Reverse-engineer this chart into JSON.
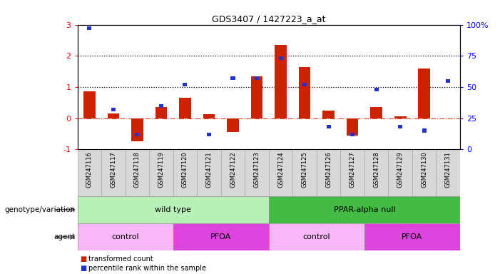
{
  "title": "GDS3407 / 1427223_a_at",
  "samples": [
    "GSM247116",
    "GSM247117",
    "GSM247118",
    "GSM247119",
    "GSM247120",
    "GSM247121",
    "GSM247122",
    "GSM247123",
    "GSM247124",
    "GSM247125",
    "GSM247126",
    "GSM247127",
    "GSM247128",
    "GSM247129",
    "GSM247130",
    "GSM247131"
  ],
  "red_values": [
    0.85,
    0.15,
    -0.75,
    0.35,
    0.65,
    0.13,
    -0.45,
    1.35,
    2.35,
    1.65,
    0.25,
    -0.55,
    0.35,
    0.05,
    1.6,
    0.0
  ],
  "blue_pct": [
    97,
    32,
    12,
    35,
    52,
    12,
    57,
    57,
    73,
    52,
    18,
    12,
    48,
    18,
    15,
    55
  ],
  "ylim": [
    -1,
    3
  ],
  "y2lim": [
    0,
    100
  ],
  "yticks": [
    -1,
    0,
    1,
    2,
    3
  ],
  "y2ticks": [
    0,
    25,
    50,
    75,
    100
  ],
  "hlines": [
    1,
    2
  ],
  "red_color": "#cc2200",
  "blue_color": "#2233cc",
  "zero_line_color": "#cc2200",
  "groups": {
    "genotype": [
      {
        "label": "wild type",
        "start": 0,
        "end": 8,
        "color": "#b8f0b8"
      },
      {
        "label": "PPAR-alpha null",
        "start": 8,
        "end": 16,
        "color": "#44bb44"
      }
    ],
    "agent": [
      {
        "label": "control",
        "start": 0,
        "end": 4,
        "color": "#f8b8f8"
      },
      {
        "label": "PFOA",
        "start": 4,
        "end": 8,
        "color": "#dd44dd"
      },
      {
        "label": "control",
        "start": 8,
        "end": 12,
        "color": "#f8b8f8"
      },
      {
        "label": "PFOA",
        "start": 12,
        "end": 16,
        "color": "#dd44dd"
      }
    ]
  },
  "legend_items": [
    {
      "label": "transformed count",
      "color": "#cc2200"
    },
    {
      "label": "percentile rank within the sample",
      "color": "#2233cc"
    }
  ],
  "bar_width": 0.5,
  "blue_sq_size": 0.18,
  "background_color": "#ffffff"
}
